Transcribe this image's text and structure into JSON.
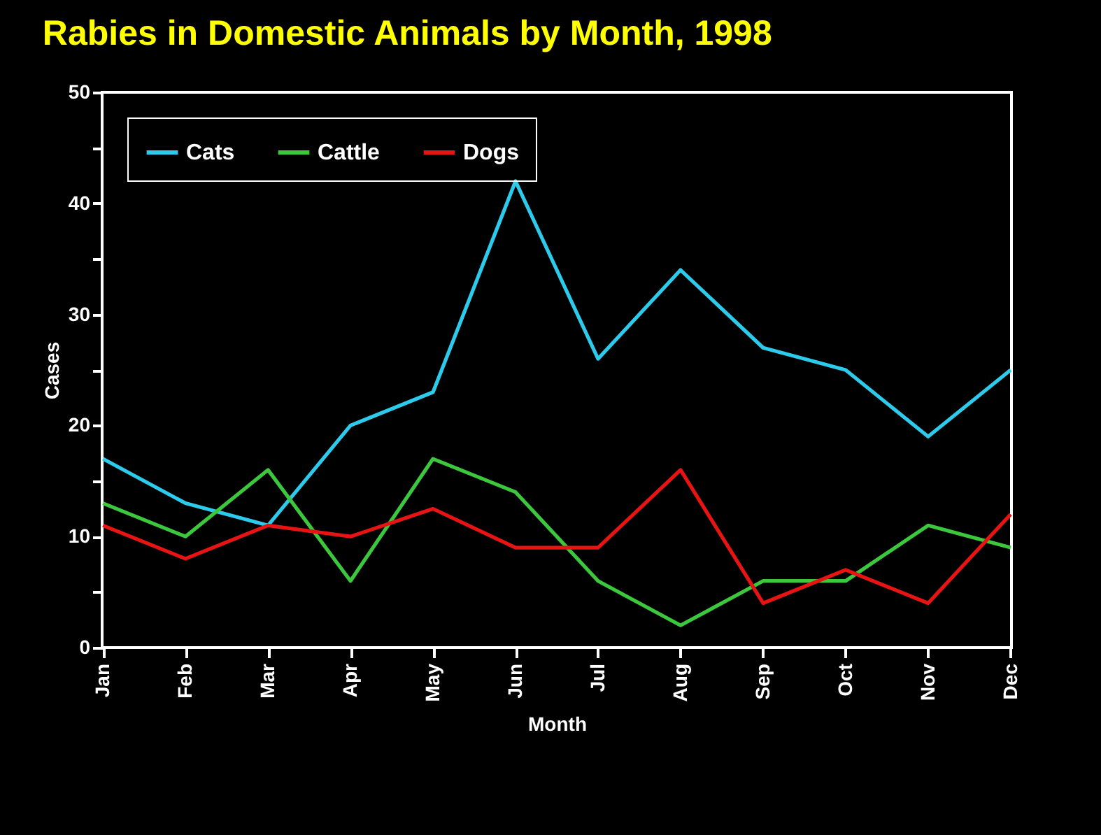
{
  "chart_data": {
    "type": "line",
    "title": "Rabies in Domestic Animals by Month, 1998",
    "xlabel": "Month",
    "ylabel": "Cases",
    "categories": [
      "Jan",
      "Feb",
      "Mar",
      "Apr",
      "May",
      "Jun",
      "Jul",
      "Aug",
      "Sep",
      "Oct",
      "Nov",
      "Dec"
    ],
    "series": [
      {
        "name": "Cats",
        "color": "#2ccbec",
        "values": [
          17,
          13,
          11,
          20,
          23,
          42,
          26,
          34,
          27,
          25,
          19,
          25
        ]
      },
      {
        "name": "Cattle",
        "color": "#3cc83c",
        "values": [
          13,
          10,
          16,
          6,
          17,
          14,
          6,
          2,
          6,
          6,
          11,
          9
        ]
      },
      {
        "name": "Dogs",
        "color": "#e81414",
        "values": [
          11,
          8,
          11,
          10,
          12.5,
          9,
          9,
          16,
          4,
          7,
          4,
          12
        ]
      }
    ],
    "ylim": [
      0,
      50
    ],
    "yticks": [
      0,
      {
        "value": 5,
        "label": null
      },
      10,
      {
        "value": 15,
        "label": null
      },
      20,
      {
        "value": 25,
        "label": null
      },
      30,
      {
        "value": 35,
        "label": null
      },
      40,
      {
        "value": 45,
        "label": null
      },
      50
    ],
    "grid": false,
    "legend": "top left",
    "marker": "none",
    "line_style": "solid"
  }
}
